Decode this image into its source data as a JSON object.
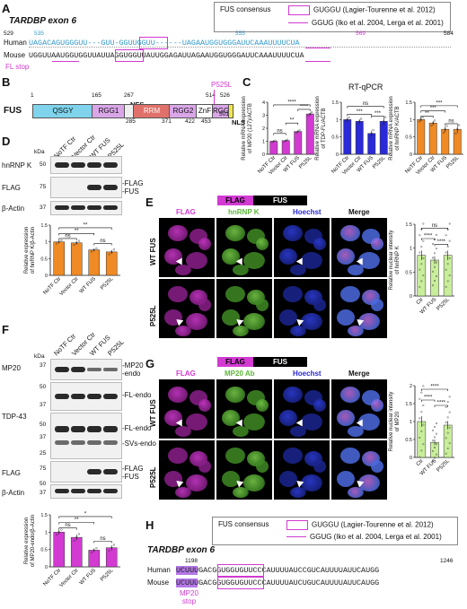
{
  "panelA": {
    "letter": "A",
    "title": "TARDBP exon 6",
    "legend_fus": "FUS consensus",
    "legend_box": "GUGGU (Lagier-Tourenne et al. 2012)",
    "legend_line": "GGUG (Iko et al. 2004, Lerga et al. 2001)",
    "pos_529": "529",
    "pos_535": "535",
    "pos_555": "555",
    "pos_569": "569",
    "pos_584": "584",
    "human_label": "Human",
    "mouse_label": "Mouse",
    "human_seq": "UAGACAGUGGGUU---GUU-GGUUGGUU------UAGAAUGGUGGGAUUCAAAUUUUCUA",
    "mouse_seq": "UGGUUAAUGGUGGUUAUUAGGUGGUUAUUGGAGAUUAGAAUGGUGGGAUUCAAAUUUUCUA",
    "fl_stop": "FL stop"
  },
  "panelB": {
    "letter": "B",
    "protein": "FUS",
    "domains": [
      "QSGY",
      "RGG1",
      "RRM",
      "RGG2",
      "ZnF",
      "RGG3"
    ],
    "nes": "NES",
    "nls": "NLS",
    "mutation": "P525L",
    "pos_top": [
      "1",
      "165",
      "267",
      "514",
      "526"
    ],
    "pos_bottom": [
      "285",
      "371",
      "422",
      "453",
      "501"
    ]
  },
  "panelC": {
    "letter": "C",
    "title": "RT-qPCR",
    "charts": [
      {
        "ylabel": "Relative mRNA expression of MP20 (127)/ACTB",
        "color": "#d23ad2"
      },
      {
        "ylabel": "Relative mRNA expression of TDP-FL/ACTB",
        "color": "#2a2ad8"
      },
      {
        "ylabel": "Relative mRNA expression of hnRNP K/ACTB",
        "color": "#ef8a25"
      }
    ],
    "xcats": [
      "NoTF Ctr",
      "Vector Ctr",
      "WT FUS",
      "P525L"
    ],
    "sig": [
      "ns",
      "**",
      "****",
      "****",
      "***",
      "***",
      "ns",
      "***",
      "**",
      "ns"
    ]
  },
  "panelD": {
    "letter": "D",
    "lanes": [
      "NoTF Ctr",
      "Vector Ctr",
      "WT FUS",
      "P525L"
    ],
    "kda": "kDa",
    "marks": [
      "50",
      "75",
      "37"
    ],
    "rows": [
      "hnRNP K",
      "FLAG",
      "β-Actin"
    ],
    "right_flag": "-FLAG\n-FUS",
    "chart_ylabel": "Relative expression of hnRNP K/β-Actin",
    "sig": [
      "**",
      "**",
      "ns",
      "ns"
    ]
  },
  "panelE": {
    "letter": "E",
    "bar_flag": "FLAG",
    "bar_fus": "FUS",
    "cols": [
      "FLAG",
      "hnRNP K",
      "Hoechst",
      "Merge"
    ],
    "rows": [
      "WT FUS",
      "P525L"
    ],
    "chart_ylabel": "Relative nuclear intensity of hnRNP K",
    "xcats": [
      "Ctr",
      "WT FUS",
      "P525L"
    ],
    "sig": [
      "ns",
      "****",
      "****"
    ]
  },
  "panelF": {
    "letter": "F",
    "lanes": [
      "NoTF Ctr",
      "Vector Ctr",
      "WT FUS",
      "P525L"
    ],
    "kda": "kDa",
    "rows": [
      "MP20",
      "TDP-43",
      "FLAG",
      "β-Actin"
    ],
    "marks": [
      "37",
      "50",
      "37",
      "50",
      "37",
      "25",
      "75",
      "50",
      "37"
    ],
    "right": [
      "-MP20\n-endo",
      "-FL-endo",
      "-FL-endo",
      "-SVs-endo",
      "-FLAG\n-FUS"
    ],
    "chart_ylabel": "Relative expression of MP20-endo/β-Actin",
    "sig": [
      "*",
      "**",
      "ns",
      "ns"
    ]
  },
  "panelG": {
    "letter": "G",
    "bar_flag": "FLAG",
    "bar_fus": "FUS",
    "cols": [
      "FLAG",
      "MP20 Ab",
      "Hoechst",
      "Merge"
    ],
    "rows": [
      "WT FUS",
      "P525L"
    ],
    "chart_ylabel": "Relative nuclear intensity of MP20",
    "xcats": [
      "Ctr",
      "WT FUS",
      "P525L"
    ],
    "sig": [
      "****",
      "****",
      "****"
    ]
  },
  "panelH": {
    "letter": "H",
    "title": "TARDBP exon 6",
    "legend_fus": "FUS consensus",
    "legend_box": "GUGGU (Lagier-Tourenne et al. 2012)",
    "legend_line": "GGUG (Iko et al. 2004, Lerga et al. 2001)",
    "pos_start": "1198",
    "pos_end": "1246",
    "human_label": "Human",
    "mouse_label": "Mouse",
    "human_seq": "UCUUUGACGGUGGUGUUCCCAUUUUAUCCGUCAUUUUAUUCAUGG",
    "mouse_seq": "UCUUUGACGGUGGUGUUCCCAUUUUAUCUGUCAUUUUAUUCAUGG",
    "mp20_stop": "MP20\nstop"
  },
  "colors": {
    "magenta": "#d23ad2",
    "blue": "#2a2ad8",
    "orange": "#ef8a25",
    "green": "#7bd24b",
    "teal": "#3399cc"
  }
}
